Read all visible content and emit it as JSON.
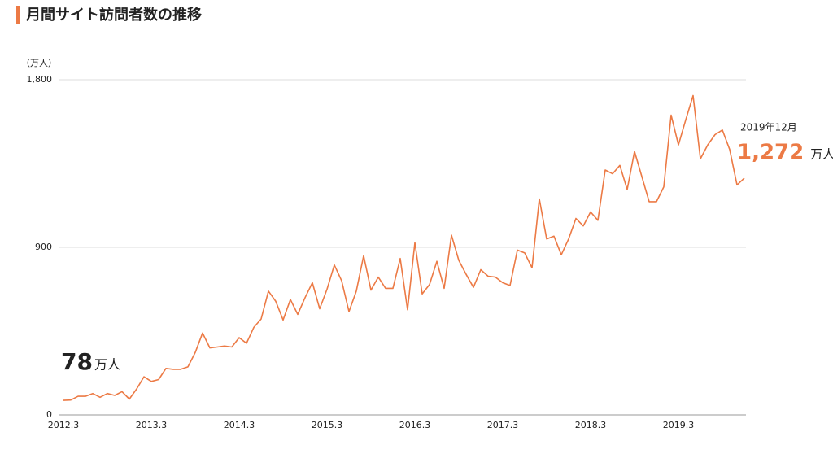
{
  "chart_data": {
    "type": "line",
    "title": "月間サイト訪問者数の推移",
    "y_unit_label": "（万人）",
    "unit_suffix": "万人",
    "end_label": "2019年12月",
    "categories": [
      "2012.3",
      null,
      null,
      null,
      null,
      null,
      null,
      null,
      null,
      null,
      null,
      null,
      "2013.3",
      null,
      null,
      null,
      null,
      null,
      null,
      null,
      null,
      null,
      null,
      null,
      "2014.3",
      null,
      null,
      null,
      null,
      null,
      null,
      null,
      null,
      null,
      null,
      null,
      "2015.3",
      null,
      null,
      null,
      null,
      null,
      null,
      null,
      null,
      null,
      null,
      null,
      "2016.3",
      null,
      null,
      null,
      null,
      null,
      null,
      null,
      null,
      null,
      null,
      null,
      "2017.3",
      null,
      null,
      null,
      null,
      null,
      null,
      null,
      null,
      null,
      null,
      null,
      "2018.3",
      null,
      null,
      null,
      null,
      null,
      null,
      null,
      null,
      null,
      null,
      null,
      "2019.3",
      null,
      null,
      null,
      null,
      null,
      null,
      null,
      null,
      null
    ],
    "series": [
      {
        "name": null,
        "color": "#ec7a45",
        "values": [
          78,
          80,
          100,
          100,
          115,
          95,
          115,
          105,
          125,
          85,
          140,
          205,
          180,
          190,
          250,
          245,
          245,
          258,
          335,
          440,
          360,
          365,
          370,
          365,
          415,
          385,
          470,
          515,
          665,
          610,
          510,
          620,
          540,
          630,
          710,
          570,
          675,
          805,
          720,
          555,
          665,
          855,
          670,
          740,
          680,
          680,
          840,
          565,
          925,
          650,
          700,
          825,
          680,
          965,
          830,
          755,
          685,
          780,
          745,
          740,
          710,
          695,
          885,
          870,
          790,
          1160,
          945,
          960,
          860,
          945,
          1055,
          1015,
          1090,
          1045,
          1315,
          1295,
          1340,
          1210,
          1415,
          1280,
          1145,
          1145,
          1225,
          1610,
          1450,
          1585,
          1715,
          1375,
          1450,
          1505,
          1530,
          1425,
          1235,
          1272
        ],
        "value_labels": [
          null,
          null,
          null,
          null,
          null,
          null,
          null,
          null,
          null,
          null,
          null,
          null,
          null,
          null,
          null,
          null,
          null,
          null,
          null,
          null,
          null,
          null,
          null,
          null,
          null,
          null,
          null,
          null,
          null,
          null,
          null,
          null,
          null,
          null,
          null,
          null,
          null,
          null,
          null,
          null,
          null,
          null,
          null,
          null,
          null,
          null,
          null,
          null,
          null,
          null,
          null,
          null,
          null,
          null,
          null,
          null,
          null,
          null,
          null,
          null,
          null,
          null,
          null,
          null,
          null,
          null,
          null,
          null,
          null,
          null,
          null,
          null,
          null,
          null,
          null,
          null,
          null,
          null,
          null,
          null,
          null,
          null,
          null,
          null,
          null,
          null,
          null,
          null,
          null,
          null,
          null,
          null,
          null,
          "1,272"
        ]
      }
    ],
    "ylim": [
      0,
      1800
    ],
    "yticks": [
      0,
      900,
      {
        "value": 1800,
        "label": "1,800"
      }
    ],
    "grid": true
  }
}
